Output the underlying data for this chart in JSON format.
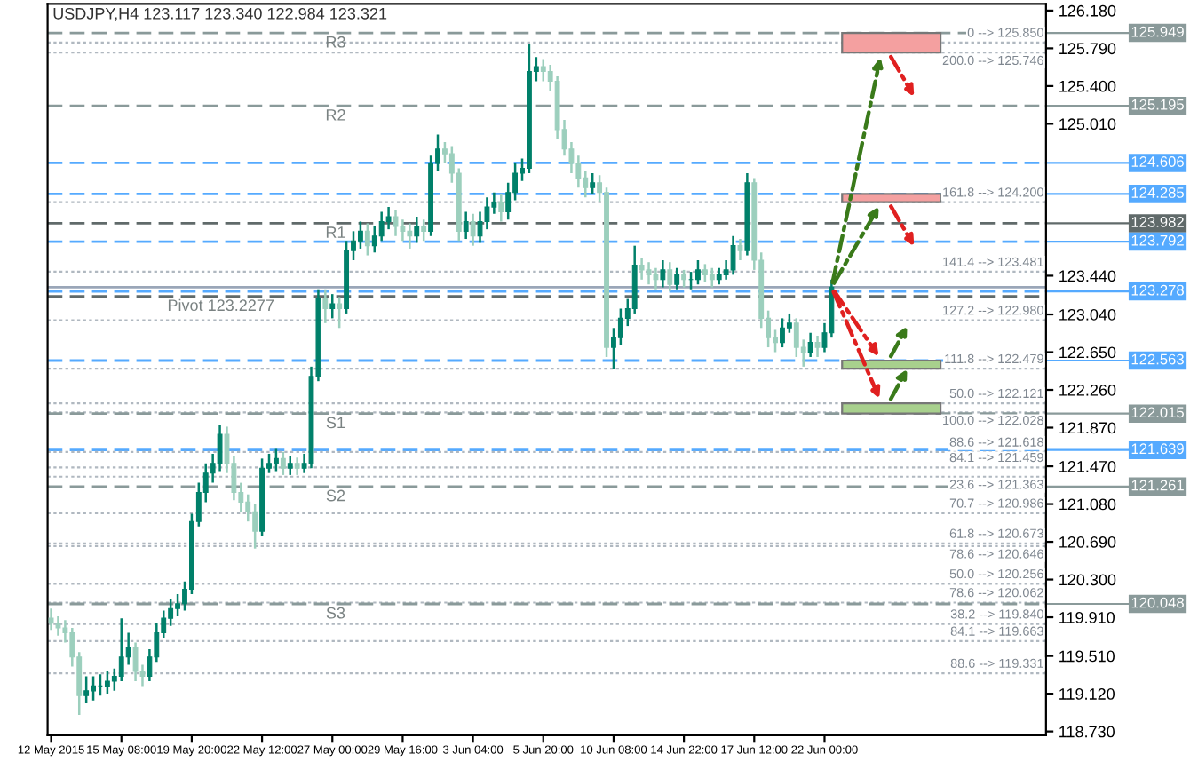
{
  "chart_data": {
    "type": "candlestick",
    "title": "USDJPY,H4 123.117 123.340 122.984 123.321",
    "categories": [
      "12 May 2015",
      null,
      null,
      null,
      null,
      null,
      null,
      null,
      null,
      null,
      "15 May 08:00",
      null,
      null,
      null,
      null,
      null,
      null,
      null,
      null,
      null,
      "19 May 20:00",
      null,
      null,
      null,
      null,
      null,
      null,
      null,
      null,
      null,
      "22 May 12:00",
      null,
      null,
      null,
      null,
      null,
      null,
      null,
      null,
      null,
      "27 May 00:00",
      null,
      null,
      null,
      null,
      null,
      null,
      null,
      null,
      null,
      "29 May 16:00",
      null,
      null,
      null,
      null,
      null,
      null,
      null,
      null,
      null,
      "3 Jun 04:00",
      null,
      null,
      null,
      null,
      null,
      null,
      null,
      null,
      null,
      "5 Jun 20:00",
      null,
      null,
      null,
      null,
      null,
      null,
      null,
      null,
      null,
      "10 Jun 08:00",
      null,
      null,
      null,
      null,
      null,
      null,
      null,
      null,
      null,
      "14 Jun 22:00",
      null,
      null,
      null,
      null,
      null,
      null,
      null,
      null,
      null,
      "17 Jun 12:00",
      null,
      null,
      null,
      null,
      null,
      null,
      null,
      null,
      null,
      "22 Jun 00:00",
      null,
      null,
      null,
      null,
      null,
      null,
      null,
      null,
      null,
      null,
      null,
      null,
      null,
      null,
      null,
      null,
      null,
      null,
      null,
      null,
      null,
      null,
      null,
      null,
      null,
      null,
      null,
      null,
      null,
      null,
      null
    ],
    "ohlc": [
      [
        119.9,
        120.0,
        119.78,
        119.85
      ],
      [
        119.85,
        119.92,
        119.72,
        119.8
      ],
      [
        119.8,
        119.88,
        119.65,
        119.75
      ],
      [
        119.75,
        119.8,
        119.4,
        119.5
      ],
      [
        119.5,
        119.55,
        118.9,
        119.1
      ],
      [
        119.1,
        119.3,
        119.02,
        119.15
      ],
      [
        119.15,
        119.3,
        119.05,
        119.2
      ],
      [
        119.2,
        119.32,
        119.1,
        119.2
      ],
      [
        119.2,
        119.35,
        119.12,
        119.25
      ],
      [
        119.25,
        119.38,
        119.15,
        119.3
      ],
      [
        119.3,
        119.9,
        119.25,
        119.5
      ],
      [
        119.5,
        119.75,
        119.42,
        119.6
      ],
      [
        119.6,
        119.65,
        119.25,
        119.35
      ],
      [
        119.35,
        119.42,
        119.2,
        119.3
      ],
      [
        119.3,
        119.58,
        119.25,
        119.5
      ],
      [
        119.5,
        119.85,
        119.45,
        119.75
      ],
      [
        119.75,
        119.98,
        119.7,
        119.9
      ],
      [
        119.9,
        120.1,
        119.82,
        120.0
      ],
      [
        120.0,
        120.15,
        119.92,
        120.05
      ],
      [
        120.05,
        120.28,
        119.98,
        120.2
      ],
      [
        120.2,
        120.98,
        120.15,
        120.9
      ],
      [
        120.9,
        121.3,
        120.85,
        121.2
      ],
      [
        121.2,
        121.5,
        121.1,
        121.4
      ],
      [
        121.4,
        121.6,
        121.3,
        121.5
      ],
      [
        121.5,
        121.9,
        121.42,
        121.8
      ],
      [
        121.8,
        121.88,
        121.4,
        121.5
      ],
      [
        121.5,
        121.58,
        121.12,
        121.2
      ],
      [
        121.2,
        121.3,
        121.0,
        121.1
      ],
      [
        121.1,
        121.18,
        120.9,
        121.0
      ],
      [
        121.0,
        121.08,
        120.62,
        120.8
      ],
      [
        120.8,
        121.55,
        120.75,
        121.45
      ],
      [
        121.45,
        121.6,
        121.4,
        121.5
      ],
      [
        121.5,
        121.65,
        121.42,
        121.55
      ],
      [
        121.55,
        121.62,
        121.38,
        121.45
      ],
      [
        121.45,
        121.58,
        121.38,
        121.5
      ],
      [
        121.5,
        121.56,
        121.38,
        121.45
      ],
      [
        121.45,
        121.6,
        121.4,
        121.5
      ],
      [
        121.5,
        122.5,
        121.45,
        122.4
      ],
      [
        122.4,
        123.3,
        122.35,
        123.2
      ],
      [
        123.2,
        123.3,
        122.95,
        123.1
      ],
      [
        123.1,
        123.25,
        123.0,
        123.15
      ],
      [
        123.15,
        123.22,
        122.9,
        123.1
      ],
      [
        123.1,
        123.8,
        123.05,
        123.7
      ],
      [
        123.7,
        123.9,
        123.6,
        123.8
      ],
      [
        123.8,
        124.0,
        123.72,
        123.9
      ],
      [
        123.9,
        123.98,
        123.65,
        123.75
      ],
      [
        123.75,
        123.95,
        123.68,
        123.85
      ],
      [
        123.85,
        124.1,
        123.8,
        124.0
      ],
      [
        124.0,
        124.15,
        123.92,
        124.05
      ],
      [
        124.05,
        124.12,
        123.85,
        123.95
      ],
      [
        123.95,
        124.02,
        123.8,
        123.9
      ],
      [
        123.9,
        123.98,
        123.72,
        123.85
      ],
      [
        123.85,
        124.05,
        123.78,
        123.95
      ],
      [
        123.95,
        124.02,
        123.8,
        123.9
      ],
      [
        123.9,
        124.68,
        123.85,
        124.6
      ],
      [
        124.6,
        124.9,
        124.52,
        124.75
      ],
      [
        124.75,
        124.82,
        124.6,
        124.7
      ],
      [
        124.7,
        124.78,
        124.4,
        124.5
      ],
      [
        124.5,
        124.55,
        123.8,
        123.9
      ],
      [
        123.9,
        124.1,
        123.82,
        124.0
      ],
      [
        124.0,
        124.08,
        123.75,
        123.85
      ],
      [
        123.85,
        124.1,
        123.78,
        124.0
      ],
      [
        124.0,
        124.25,
        123.92,
        124.15
      ],
      [
        124.15,
        124.3,
        124.08,
        124.2
      ],
      [
        124.2,
        124.28,
        124.0,
        124.1
      ],
      [
        124.1,
        124.4,
        124.02,
        124.3
      ],
      [
        124.3,
        124.6,
        124.22,
        124.5
      ],
      [
        124.5,
        124.65,
        124.42,
        124.55
      ],
      [
        124.55,
        125.83,
        124.5,
        125.55
      ],
      [
        125.55,
        125.7,
        125.45,
        125.6
      ],
      [
        125.6,
        125.68,
        125.45,
        125.55
      ],
      [
        125.55,
        125.62,
        125.35,
        125.45
      ],
      [
        125.45,
        125.5,
        124.85,
        124.95
      ],
      [
        124.95,
        125.05,
        124.68,
        124.75
      ],
      [
        124.75,
        124.82,
        124.5,
        124.6
      ],
      [
        124.6,
        124.68,
        124.35,
        124.45
      ],
      [
        124.45,
        124.52,
        124.25,
        124.35
      ],
      [
        124.35,
        124.5,
        124.28,
        124.4
      ],
      [
        124.4,
        124.48,
        124.2,
        124.3
      ],
      [
        124.3,
        124.35,
        122.6,
        122.7
      ],
      [
        122.7,
        122.9,
        122.48,
        122.8
      ],
      [
        122.8,
        123.1,
        122.72,
        123.0
      ],
      [
        123.0,
        123.2,
        122.92,
        123.1
      ],
      [
        123.1,
        123.75,
        123.05,
        123.55
      ],
      [
        123.55,
        123.62,
        123.4,
        123.5
      ],
      [
        123.5,
        123.58,
        123.35,
        123.45
      ],
      [
        123.45,
        123.52,
        123.3,
        123.4
      ],
      [
        123.4,
        123.6,
        123.32,
        123.5
      ],
      [
        123.5,
        123.58,
        123.28,
        123.35
      ],
      [
        123.35,
        123.52,
        123.3,
        123.45
      ],
      [
        123.45,
        123.5,
        123.32,
        123.4
      ],
      [
        123.4,
        123.48,
        123.3,
        123.4
      ],
      [
        123.4,
        123.6,
        123.35,
        123.5
      ],
      [
        123.5,
        123.56,
        123.38,
        123.45
      ],
      [
        123.45,
        123.52,
        123.32,
        123.4
      ],
      [
        123.4,
        123.52,
        123.35,
        123.45
      ],
      [
        123.45,
        123.6,
        123.4,
        123.5
      ],
      [
        123.5,
        123.85,
        123.45,
        123.75
      ],
      [
        123.75,
        123.82,
        123.6,
        123.7
      ],
      [
        123.7,
        124.5,
        123.65,
        124.4
      ],
      [
        124.4,
        124.45,
        123.5,
        123.6
      ],
      [
        123.6,
        123.68,
        122.9,
        123.0
      ],
      [
        123.0,
        123.08,
        122.7,
        122.8
      ],
      [
        122.8,
        122.88,
        122.65,
        122.75
      ],
      [
        122.75,
        123.0,
        122.7,
        122.9
      ],
      [
        122.9,
        123.05,
        122.85,
        122.95
      ],
      [
        122.95,
        123.0,
        122.6,
        122.7
      ],
      [
        122.7,
        122.78,
        122.5,
        122.65
      ],
      [
        122.65,
        122.85,
        122.6,
        122.75
      ],
      [
        122.75,
        122.82,
        122.6,
        122.7
      ],
      [
        122.7,
        122.95,
        122.65,
        122.85
      ],
      [
        122.85,
        123.4,
        122.8,
        123.321
      ],
      null,
      null,
      null,
      null,
      null,
      null,
      null,
      null,
      null,
      null,
      null,
      null,
      null,
      null,
      null,
      null,
      null,
      null,
      null,
      null,
      null,
      null,
      null,
      null,
      null,
      null,
      null,
      null,
      null,
      null
    ],
    "ylim": [
      118.69,
      126.25
    ],
    "yticks": [
      {
        "value": 126.18,
        "label": "126.180"
      },
      {
        "value": 125.79,
        "label": "125.790"
      },
      {
        "value": 125.4,
        "label": "125.400"
      },
      {
        "value": 125.01,
        "label": "125.010"
      },
      {
        "value": 123.44,
        "label": "123.440"
      },
      {
        "value": 123.04,
        "label": "123.040"
      },
      {
        "value": 122.65,
        "label": "122.650"
      },
      {
        "value": 122.26,
        "label": "122.260"
      },
      {
        "value": 121.87,
        "label": "121.870"
      },
      {
        "value": 121.47,
        "label": "121.470"
      },
      {
        "value": 121.08,
        "label": "121.080"
      },
      {
        "value": 120.69,
        "label": "120.690"
      },
      {
        "value": 120.3,
        "label": "120.300"
      },
      {
        "value": 119.91,
        "label": "119.910"
      },
      {
        "value": 119.51,
        "label": "119.510"
      },
      {
        "value": 119.12,
        "label": "119.120"
      },
      {
        "value": 118.73,
        "label": "118.730"
      }
    ],
    "grid": false,
    "ref_lines": [
      {
        "axis": "y",
        "value": 125.949,
        "label": "125.949",
        "color": "#8a9a9a",
        "line_style": "dashed"
      },
      {
        "axis": "y",
        "value": 125.195,
        "label": "125.195",
        "color": "#8a9a9a",
        "line_style": "dashed"
      },
      {
        "axis": "y",
        "value": 123.982,
        "label": "123.982",
        "color": "#606a6a",
        "line_style": "dashed"
      },
      {
        "axis": "y",
        "value": 123.228,
        "label": null,
        "color": "#606a6a",
        "line_style": "dashed"
      },
      {
        "axis": "y",
        "value": 122.015,
        "label": "122.015",
        "color": "#8a9a9a",
        "line_style": "dashed"
      },
      {
        "axis": "y",
        "value": 121.261,
        "label": "121.261",
        "color": "#8a9a9a",
        "line_style": "dashed"
      },
      {
        "axis": "y",
        "value": 120.048,
        "label": "120.048",
        "color": "#8a9a9a",
        "line_style": "dashed"
      },
      {
        "axis": "y",
        "value": 124.606,
        "label": "124.606",
        "color": "#55aaff",
        "line_style": "dashed"
      },
      {
        "axis": "y",
        "value": 124.285,
        "label": "124.285",
        "color": "#55aaff",
        "line_style": "dashed"
      },
      {
        "axis": "y",
        "value": 123.792,
        "label": "123.792",
        "color": "#55aaff",
        "line_style": "dashed"
      },
      {
        "axis": "y",
        "value": 123.278,
        "label": "123.278",
        "color": "#55aaff",
        "line_style": "dashed"
      },
      {
        "axis": "y",
        "value": 122.563,
        "label": "122.563",
        "color": "#55aaff",
        "line_style": "dashed"
      },
      {
        "axis": "y",
        "value": 121.639,
        "label": "121.639",
        "color": "#55aaff",
        "line_style": "dashed"
      },
      {
        "axis": "y",
        "value": 123.321,
        "label": null,
        "color": "#9aa6b8",
        "line_style": "solid"
      },
      {
        "axis": "y",
        "value": 125.85,
        "label": "0 --> 125.850",
        "color": "#b0b8c0",
        "line_style": "dotted"
      },
      {
        "axis": "y",
        "value": 125.746,
        "label": "200.0 --> 125.746",
        "color": "#b0b8c0",
        "line_style": "dotted"
      },
      {
        "axis": "y",
        "value": 124.2,
        "label": "161.8 --> 124.200",
        "color": "#b0b8c0",
        "line_style": "dotted"
      },
      {
        "axis": "y",
        "value": 123.481,
        "label": "141.4 --> 123.481",
        "color": "#b0b8c0",
        "line_style": "dotted"
      },
      {
        "axis": "y",
        "value": 122.98,
        "label": "127.2 --> 122.980",
        "color": "#b0b8c0",
        "line_style": "dotted"
      },
      {
        "axis": "y",
        "value": 122.479,
        "label": "111.8 --> 122.479",
        "color": "#b0b8c0",
        "line_style": "dotted"
      },
      {
        "axis": "y",
        "value": 122.121,
        "label": "50.0 --> 122.121",
        "color": "#b0b8c0",
        "line_style": "dotted"
      },
      {
        "axis": "y",
        "value": 122.028,
        "label": "100.0 --> 122.028",
        "color": "#b0b8c0",
        "line_style": "dotted"
      },
      {
        "axis": "y",
        "value": 121.618,
        "label": "88.6 --> 121.618",
        "color": "#b0b8c0",
        "line_style": "dotted"
      },
      {
        "axis": "y",
        "value": 121.459,
        "label": "84.1 --> 121.459",
        "color": "#b0b8c0",
        "line_style": "dotted"
      },
      {
        "axis": "y",
        "value": 121.363,
        "label": "23.6 --> 121.363",
        "color": "#b0b8c0",
        "line_style": "dotted"
      },
      {
        "axis": "y",
        "value": 120.986,
        "label": "70.7 --> 120.986",
        "color": "#b0b8c0",
        "line_style": "dotted"
      },
      {
        "axis": "y",
        "value": 120.673,
        "label": "61.8 --> 120.673",
        "color": "#b0b8c0",
        "line_style": "dotted"
      },
      {
        "axis": "y",
        "value": 120.646,
        "label": "78.6 --> 120.646",
        "color": "#b0b8c0",
        "line_style": "dotted"
      },
      {
        "axis": "y",
        "value": 120.256,
        "label": "50.0 --> 120.256",
        "color": "#b0b8c0",
        "line_style": "dotted"
      },
      {
        "axis": "y",
        "value": 120.062,
        "label": "78.6 --> 120.062",
        "color": "#b0b8c0",
        "line_style": "dotted"
      },
      {
        "axis": "y",
        "value": 119.84,
        "label": "38.2 --> 119.840",
        "color": "#b0b8c0",
        "line_style": "dotted"
      },
      {
        "axis": "y",
        "value": 119.663,
        "label": "84.1 --> 119.663",
        "color": "#b0b8c0",
        "line_style": "dotted"
      },
      {
        "axis": "y",
        "value": 119.331,
        "label": "88.6 --> 119.331",
        "color": "#b0b8c0",
        "line_style": "dotted"
      }
    ],
    "bands": [
      {
        "axis": "y",
        "from": 125.746,
        "to": 125.949,
        "color": "#f4a0a0"
      },
      {
        "axis": "y",
        "from": 124.2,
        "to": 124.285,
        "color": "#f4a0a0"
      },
      {
        "axis": "y",
        "from": 122.479,
        "to": 122.563,
        "color": "#a8d08d"
      },
      {
        "axis": "y",
        "from": 122.015,
        "to": 122.121,
        "color": "#a8d08d"
      }
    ],
    "annotations": [
      {
        "text": "R3",
        "y": 125.949
      },
      {
        "text": "R2",
        "y": 125.195
      },
      {
        "text": "R1",
        "y": 123.982
      },
      {
        "text": "Pivot 123.2277",
        "y": 123.228
      },
      {
        "text": "S1",
        "y": 122.015
      },
      {
        "text": "S2",
        "y": 121.261
      },
      {
        "text": "S3",
        "y": 120.048
      }
    ]
  }
}
